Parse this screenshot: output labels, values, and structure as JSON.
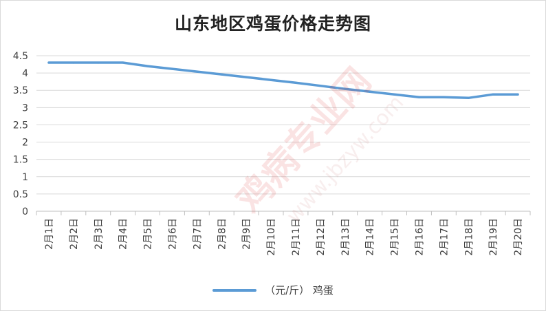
{
  "chart_data": {
    "type": "line",
    "title": "山东地区鸡蛋价格走势图",
    "categories": [
      "2月1日",
      "2月2日",
      "2月3日",
      "2月4日",
      "2月5日",
      "2月6日",
      "2月7日",
      "2月8日",
      "2月9日",
      "2月10日",
      "2月11日",
      "2月12日",
      "2月13日",
      "2月14日",
      "2月15日",
      "2月16日",
      "2月17日",
      "2月18日",
      "2月19日",
      "2月20日"
    ],
    "series": [
      {
        "name": "（元/斤） 鸡蛋",
        "color": "#5B9BD5",
        "values": [
          4.3,
          4.3,
          4.3,
          4.3,
          4.2,
          4.12,
          4.04,
          3.96,
          3.88,
          3.8,
          3.72,
          3.63,
          3.54,
          3.46,
          3.38,
          3.3,
          3.3,
          3.28,
          3.38,
          3.38
        ]
      }
    ],
    "ylim": [
      0,
      4.5
    ],
    "yticks": [
      "0",
      "0.5",
      "1",
      "1.5",
      "2",
      "2.5",
      "3",
      "3.5",
      "4",
      "4.5"
    ],
    "grid": true,
    "legend_position": "bottom"
  },
  "watermark": {
    "brand": "鸡病专业网",
    "site": "www.jbzyw.com"
  }
}
